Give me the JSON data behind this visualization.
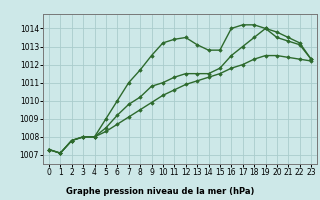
{
  "title": "Graphe pression niveau de la mer (hPa)",
  "xlabel_hours": [
    0,
    1,
    2,
    3,
    4,
    5,
    6,
    7,
    8,
    9,
    10,
    11,
    12,
    13,
    14,
    15,
    16,
    17,
    18,
    19,
    20,
    21,
    22,
    23
  ],
  "line1": [
    1007.3,
    1007.1,
    1007.8,
    1008.0,
    1008.0,
    1009.0,
    1010.0,
    1011.0,
    1011.7,
    1012.5,
    1013.2,
    1013.4,
    1013.5,
    1013.1,
    1012.8,
    1012.8,
    1014.0,
    1014.2,
    1014.2,
    1014.0,
    1013.5,
    1013.3,
    1013.1,
    1012.3
  ],
  "line2": [
    1007.3,
    1007.1,
    1007.8,
    1008.0,
    1008.0,
    1008.5,
    1009.2,
    1009.8,
    1010.2,
    1010.8,
    1011.0,
    1011.3,
    1011.5,
    1011.5,
    1011.5,
    1011.8,
    1012.5,
    1013.0,
    1013.5,
    1014.0,
    1013.8,
    1013.5,
    1013.2,
    1012.3
  ],
  "line3": [
    1007.3,
    1007.1,
    1007.8,
    1008.0,
    1008.0,
    1008.3,
    1008.7,
    1009.1,
    1009.5,
    1009.9,
    1010.3,
    1010.6,
    1010.9,
    1011.1,
    1011.3,
    1011.5,
    1011.8,
    1012.0,
    1012.3,
    1012.5,
    1012.5,
    1012.4,
    1012.3,
    1012.2
  ],
  "line_color": "#2d6a2d",
  "bg_color": "#cde8e8",
  "grid_color": "#aacccc",
  "ylim": [
    1006.5,
    1014.8
  ],
  "yticks": [
    1007,
    1008,
    1009,
    1010,
    1011,
    1012,
    1013,
    1014
  ],
  "marker": "D",
  "marker_size": 1.8,
  "line_width": 1.0,
  "tick_fontsize": 5.5,
  "label_fontsize": 6.0
}
